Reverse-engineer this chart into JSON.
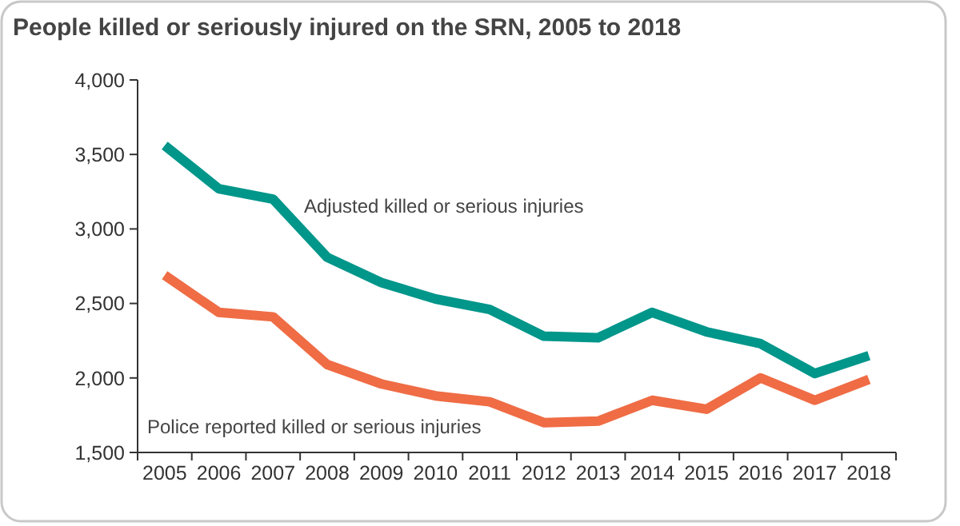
{
  "chart_data": {
    "type": "line",
    "title": "People killed or seriously injured on the SRN, 2005 to 2018",
    "categories": [
      "2005",
      "2006",
      "2007",
      "2008",
      "2009",
      "2010",
      "2011",
      "2012",
      "2013",
      "2014",
      "2015",
      "2016",
      "2017",
      "2018"
    ],
    "series": [
      {
        "name": "Adjusted killed or serious injuries",
        "color": "#00968a",
        "values": [
          3560,
          3270,
          3200,
          2810,
          2640,
          2530,
          2460,
          2280,
          2270,
          2440,
          2310,
          2230,
          2030,
          2150
        ]
      },
      {
        "name": "Police reported killed or serious injuries",
        "color": "#ef6c45",
        "values": [
          2690,
          2440,
          2410,
          2090,
          1960,
          1880,
          1840,
          1700,
          1710,
          1850,
          1790,
          2000,
          1850,
          1990
        ]
      }
    ],
    "ylim": [
      1500,
      4000
    ],
    "yticks": [
      {
        "value": 1500,
        "label": "1,500"
      },
      {
        "value": 2000,
        "label": "2,000"
      },
      {
        "value": 2500,
        "label": "2,500"
      },
      {
        "value": 3000,
        "label": "3,000"
      },
      {
        "value": 3500,
        "label": "3,500"
      },
      {
        "value": 4000,
        "label": "4,000"
      }
    ],
    "grid": false,
    "marker": "none",
    "line_style": "solid"
  }
}
